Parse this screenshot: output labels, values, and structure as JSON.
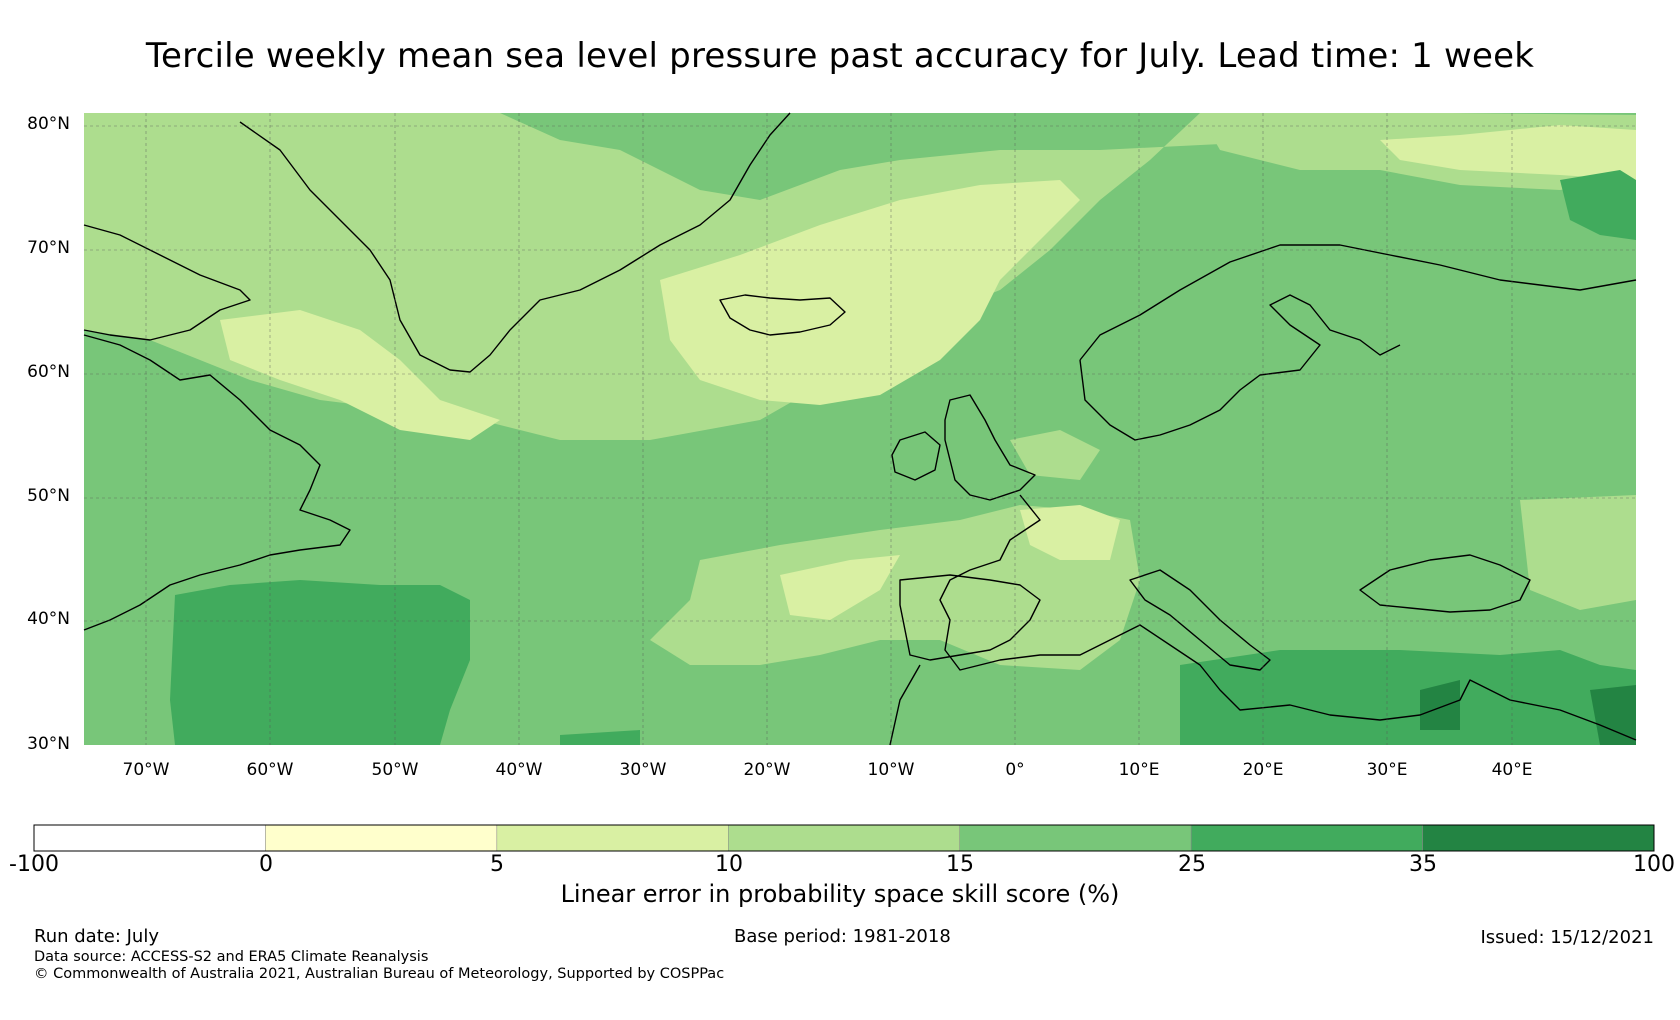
{
  "title": "Tercile weekly mean sea level pressure past accuracy for July. Lead time: 1 week",
  "latitude_labels": [
    "80°N",
    "70°N",
    "60°N",
    "50°N",
    "40°N",
    "30°N"
  ],
  "longitude_labels": [
    "70°W",
    "60°W",
    "50°W",
    "40°W",
    "30°W",
    "20°W",
    "10°W",
    "0°",
    "10°E",
    "20°E",
    "30°E",
    "40°E"
  ],
  "map_extent": {
    "lon": [
      -75,
      50
    ],
    "lat": [
      30,
      81
    ]
  },
  "colorbar": {
    "title": "Linear error in probability space skill score (%)",
    "boundaries": [
      "-100",
      "0",
      "5",
      "10",
      "15",
      "25",
      "35",
      "100"
    ],
    "colors": [
      "#ffffff",
      "#ffffcc",
      "#d9f0a3",
      "#addd8e",
      "#78c679",
      "#41ab5d",
      "#238443"
    ]
  },
  "footer": {
    "run_date": "Run date: July",
    "base_period": "Base period: 1981-2018",
    "issued": "Issued: 15/12/2021",
    "data_source": "Data source: ACCESS-S2 and ERA5 Climate Reanalysis",
    "copyright": "© Commonwealth of Australia 2021, Australian Bureau of Meteorology, Supported by COSPPac"
  }
}
